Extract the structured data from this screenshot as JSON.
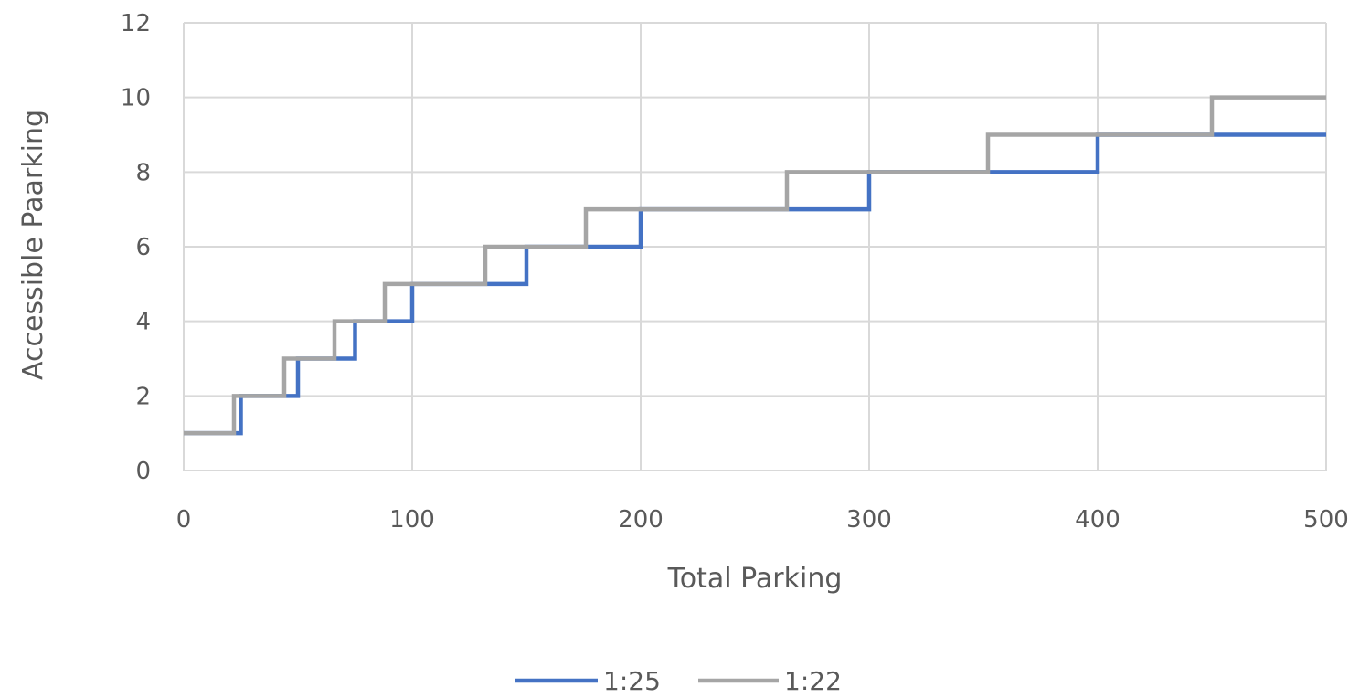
{
  "chart_data": {
    "type": "line",
    "title": "",
    "xlabel": "Total Parking",
    "ylabel": "Accessible Paarking",
    "xlim": [
      0,
      500
    ],
    "ylim": [
      0,
      12
    ],
    "x_ticks": [
      0,
      100,
      200,
      300,
      400,
      500
    ],
    "y_ticks": [
      0,
      2,
      4,
      6,
      8,
      10,
      12
    ],
    "grid": true,
    "legend_position": "bottom",
    "series": [
      {
        "name": "1:25",
        "color": "#4472c4",
        "points": [
          [
            0,
            1
          ],
          [
            25,
            1
          ],
          [
            25,
            2
          ],
          [
            50,
            2
          ],
          [
            50,
            3
          ],
          [
            75,
            3
          ],
          [
            75,
            4
          ],
          [
            100,
            4
          ],
          [
            100,
            5
          ],
          [
            150,
            5
          ],
          [
            150,
            6
          ],
          [
            200,
            6
          ],
          [
            200,
            7
          ],
          [
            300,
            7
          ],
          [
            300,
            8
          ],
          [
            400,
            8
          ],
          [
            400,
            9
          ],
          [
            500,
            9
          ]
        ]
      },
      {
        "name": "1:22",
        "color": "#a5a5a5",
        "points": [
          [
            0,
            1
          ],
          [
            22,
            1
          ],
          [
            22,
            2
          ],
          [
            44,
            2
          ],
          [
            44,
            3
          ],
          [
            66,
            3
          ],
          [
            66,
            4
          ],
          [
            88,
            4
          ],
          [
            88,
            5
          ],
          [
            132,
            5
          ],
          [
            132,
            6
          ],
          [
            176,
            6
          ],
          [
            176,
            7
          ],
          [
            264,
            7
          ],
          [
            264,
            8
          ],
          [
            352,
            8
          ],
          [
            352,
            9
          ],
          [
            450,
            9
          ],
          [
            450,
            10
          ],
          [
            500,
            10
          ]
        ]
      }
    ]
  }
}
